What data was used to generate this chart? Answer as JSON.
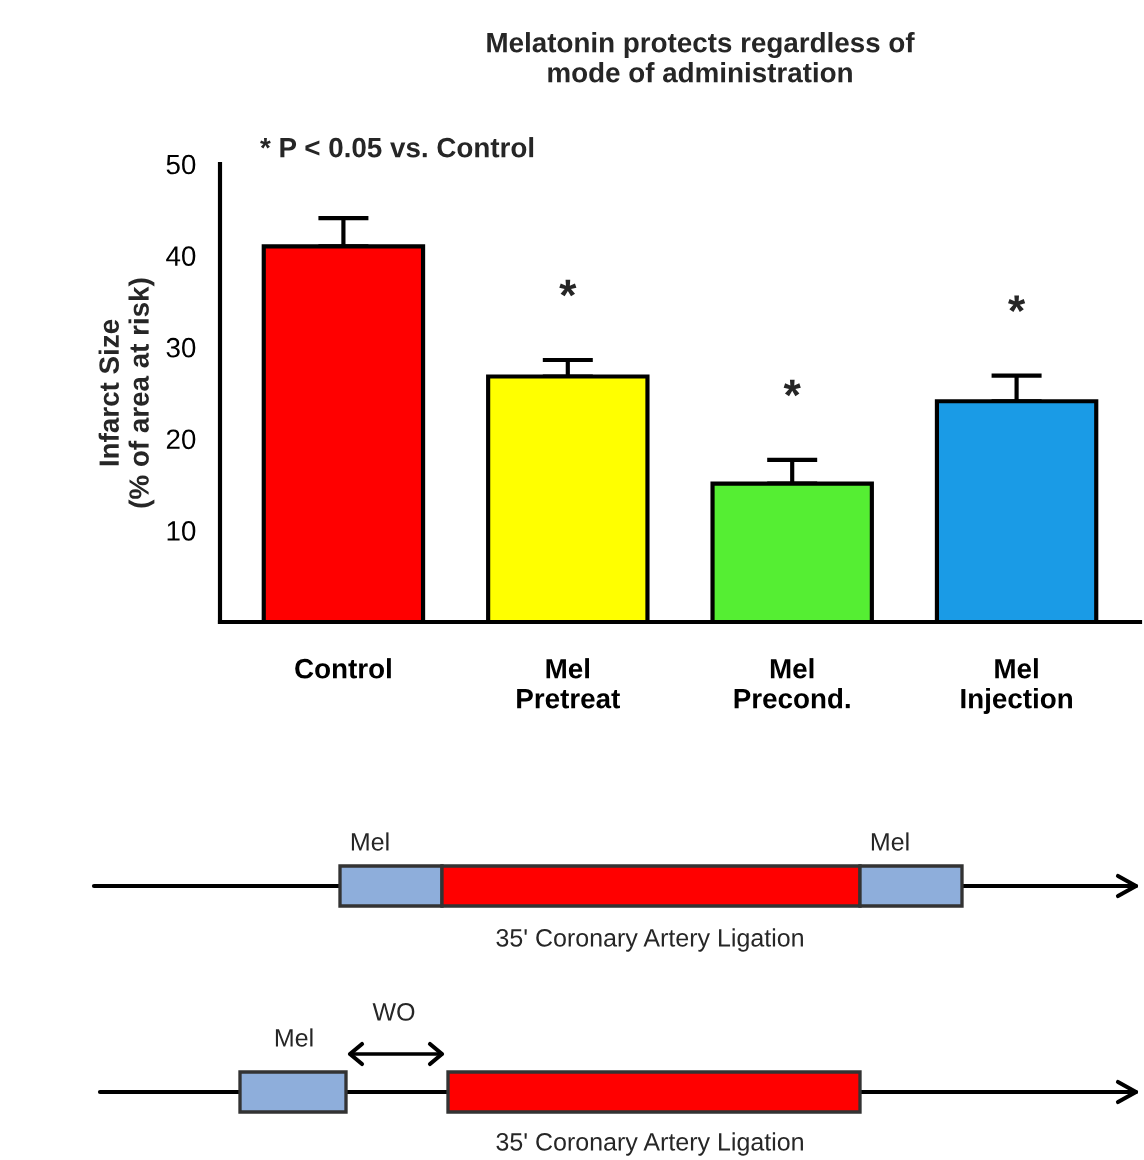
{
  "chart_data": {
    "type": "bar",
    "title": "Melatonin protects regardless of\nmode of administration",
    "ylabel": "Infarct Size\n(% of area at risk)",
    "categories": [
      "Control",
      "Mel\nPretreat",
      "Mel\nPrecond.",
      "Mel\nInjection"
    ],
    "values": [
      41,
      26.8,
      15.1,
      24.1
    ],
    "errors": [
      [
        41,
        44.1
      ],
      [
        26.8,
        28.6
      ],
      [
        15.1,
        17.7
      ],
      [
        24.1,
        26.9
      ]
    ],
    "colors": [
      "#ff0000",
      "#ffff00",
      "#55ee33",
      "#1a9be6"
    ],
    "ylim": [
      0,
      50
    ],
    "yticks": [
      10,
      20,
      30,
      40,
      50
    ],
    "grid": false,
    "annotations": [
      {
        "text": "*",
        "x": "Mel\nPretreat",
        "y": 28.6
      },
      {
        "text": "*",
        "x": "Mel\nPrecond.",
        "y": 17.7
      },
      {
        "text": "*",
        "x": "Mel\nInjection",
        "y": 26.9
      },
      "* P < 0.05 vs. Control",
      "Mel",
      "Mel",
      "35' Coronary Artery Ligation",
      "Mel",
      "WO",
      "35' Coronary Artery Ligation"
    ]
  }
}
